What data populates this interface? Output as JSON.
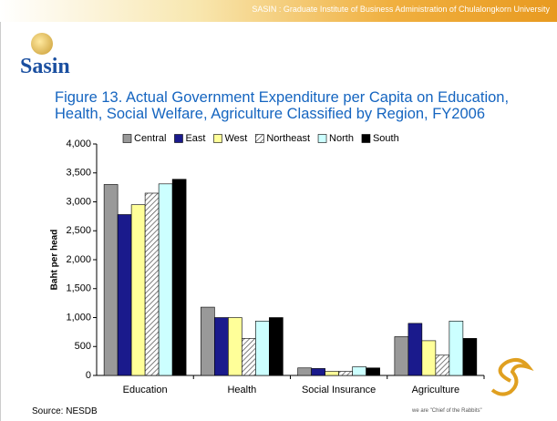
{
  "slide": {
    "header": "SASIN : Graduate Institute of Business Administration of Chulalongkorn University",
    "logo": "Sasin",
    "tagline": "we are \"Chief of the Rabbits\""
  },
  "chart_data": {
    "type": "bar",
    "title": "Figure 13. Actual Government Expenditure per Capita on Education, Health, Social Welfare, Agriculture Classified by Region, FY2006",
    "y_label": "Baht per head",
    "source": "Source: NESDB",
    "categories": [
      "Education",
      "Health",
      "Social Insurance",
      "Agriculture"
    ],
    "series": [
      {
        "name": "Central",
        "color": "#999999",
        "values": [
          3300,
          1180,
          130,
          670
        ]
      },
      {
        "name": "East",
        "color": "#1a1a8c",
        "values": [
          2780,
          1000,
          120,
          900
        ]
      },
      {
        "name": "West",
        "color": "#ffff99",
        "values": [
          2950,
          1000,
          70,
          600
        ]
      },
      {
        "name": "Northeast",
        "color": "#c8c8c8",
        "pattern": "hatch",
        "values": [
          3150,
          640,
          70,
          350
        ]
      },
      {
        "name": "North",
        "color": "#ccffff",
        "values": [
          3310,
          940,
          150,
          940
        ]
      },
      {
        "name": "South",
        "color": "#000000",
        "values": [
          3390,
          1000,
          130,
          640
        ]
      }
    ],
    "ylim": [
      0,
      4000
    ],
    "yticks": [
      0,
      500,
      {
        "value": 1000,
        "label": "1,000"
      },
      {
        "value": 1500,
        "label": "1,500"
      },
      {
        "value": 2000,
        "label": "2,000"
      },
      {
        "value": 2500,
        "label": "2,500"
      },
      {
        "value": 3000,
        "label": "3,000"
      },
      {
        "value": 3500,
        "label": "3,500"
      },
      {
        "value": 4000,
        "label": "4,000"
      }
    ],
    "grid": false,
    "legend": "top"
  }
}
